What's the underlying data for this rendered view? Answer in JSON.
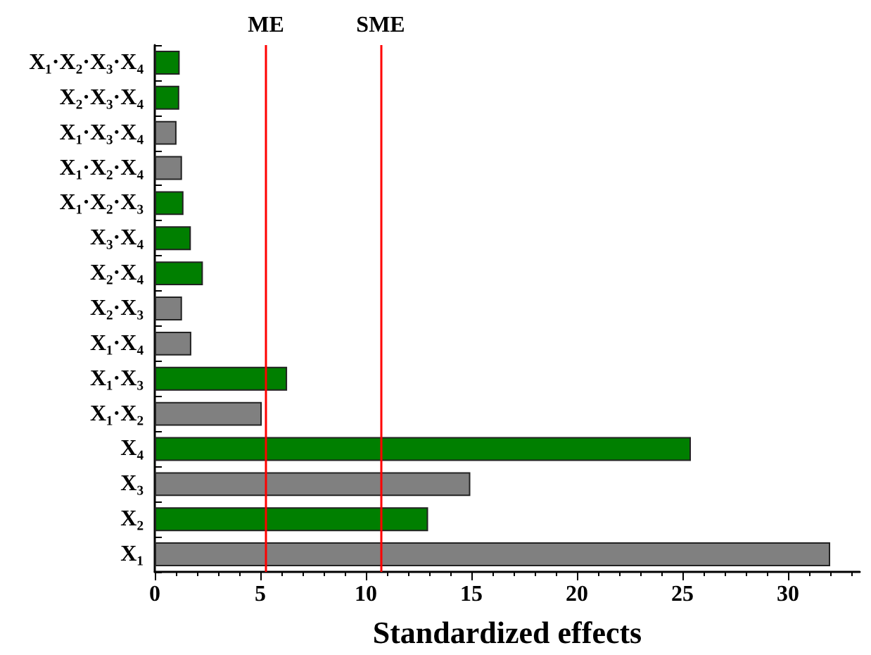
{
  "chart_data": {
    "type": "bar",
    "orientation": "horizontal",
    "xlabel": "Standardized effects",
    "categories": [
      "X₁·X₂·X₃·X₄",
      "X₂·X₃·X₄",
      "X₁·X₃·X₄",
      "X₁·X₂·X₄",
      "X₁·X₂·X₃",
      "X₃·X₄",
      "X₂·X₄",
      "X₂·X₃",
      "X₁·X₄",
      "X₁·X₃",
      "X₁·X₂",
      "X₄",
      "X₃",
      "X₂",
      "X₁"
    ],
    "values": [
      1.18,
      1.16,
      1.03,
      1.29,
      1.36,
      1.71,
      2.28,
      1.29,
      1.73,
      6.27,
      5.07,
      25.4,
      14.95,
      12.95,
      32.0
    ],
    "colors": [
      "#007f00",
      "#007f00",
      "#808080",
      "#808080",
      "#007f00",
      "#007f00",
      "#007f00",
      "#808080",
      "#808080",
      "#007f00",
      "#808080",
      "#007f00",
      "#808080",
      "#007f00",
      "#808080"
    ],
    "xlim": [
      0,
      33.4
    ],
    "xticks": [
      0,
      5,
      10,
      15,
      20,
      25,
      30
    ],
    "grid": false,
    "ref_lines": [
      {
        "axis": "x",
        "value": 5.27,
        "label": "ME",
        "color": "#ff0000"
      },
      {
        "axis": "x",
        "value": 10.7,
        "label": "SME",
        "color": "#ff0000"
      }
    ]
  }
}
